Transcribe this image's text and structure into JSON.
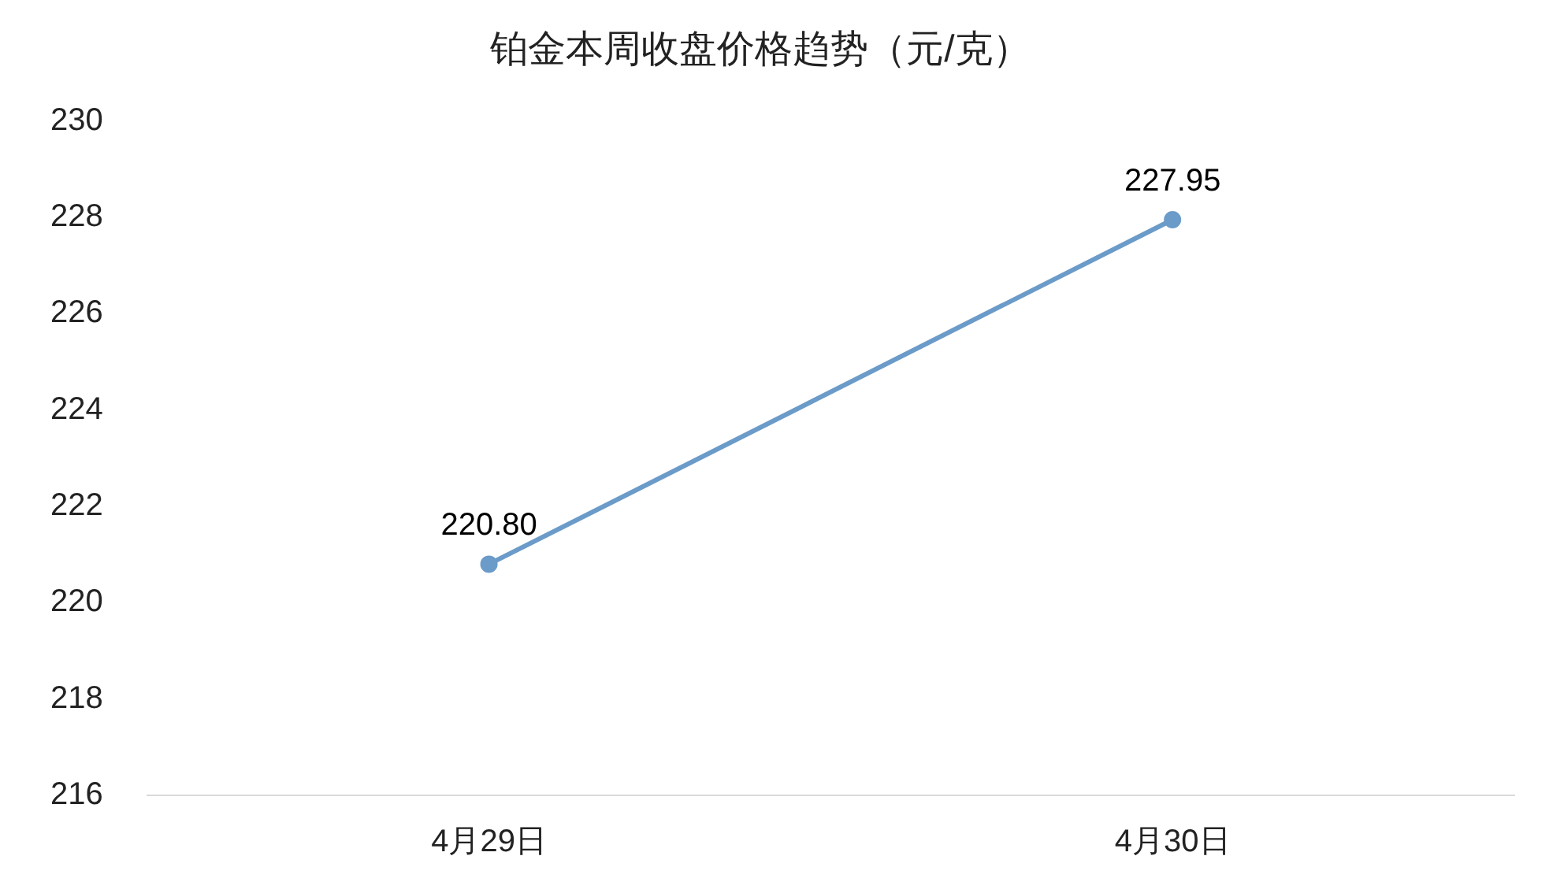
{
  "chart_data": {
    "type": "line",
    "title": "铂金本周收盘价格趋势（元/克）",
    "categories": [
      "4月29日",
      "4月30日"
    ],
    "series": [
      {
        "color": "#6b9bc8",
        "values": [
          220.8,
          227.95
        ],
        "value_labels": [
          "220.80",
          "227.95"
        ]
      }
    ],
    "ylim": [
      216,
      230
    ],
    "yticks": [
      216,
      218,
      220,
      222,
      224,
      226,
      228,
      230
    ],
    "grid": false,
    "legend": false,
    "marker": "circle",
    "line_style": "solid"
  }
}
